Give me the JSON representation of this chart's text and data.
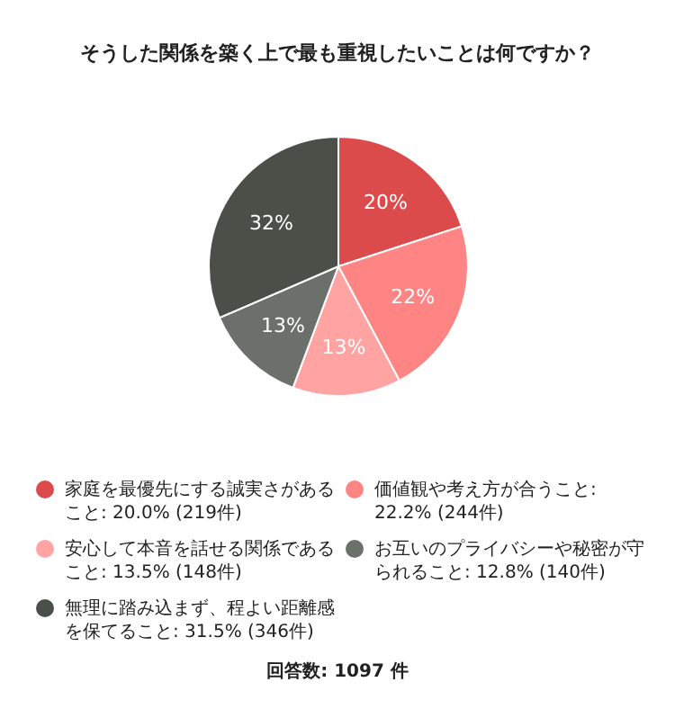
{
  "chart_data": {
    "type": "pie",
    "title": "そうした関係を築く上で最も重視したいことは何ですか？",
    "categories": [
      "家庭を最優先にする誠実さがあること: 20.0% (219件)",
      "価値観や考え方が合うこと: 22.2% (244件)",
      "安心して本音を話せる関係であること: 13.5% (148件)",
      "お互いのプライバシーや秘密が守られること: 12.8% (140件)",
      "無理に踏み込まず、程よい距離感を保てること: 31.5% (346件)"
    ],
    "values": [
      20.0,
      22.2,
      13.5,
      12.8,
      31.5
    ],
    "value_labels": [
      "20%",
      "22%",
      "13%",
      "13%",
      "32%"
    ],
    "colors": [
      "#dc4b4b",
      "#ff8585",
      "#ffa3a3",
      "#6b706b",
      "#4a4f48"
    ],
    "legend": "bottom",
    "annotations": [
      "回答数: 1097 件"
    ]
  }
}
